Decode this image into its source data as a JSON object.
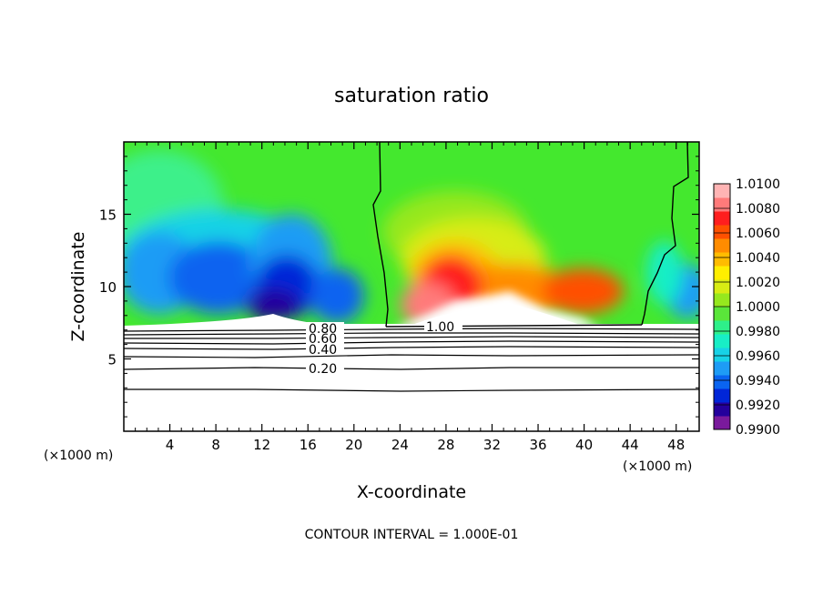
{
  "chart_data": {
    "type": "heatmap",
    "title": "saturation ratio",
    "xlabel": "X-coordinate",
    "ylabel": "Z-coordinate",
    "x_unit": "(×1000 m)",
    "x_unit_right": "(×1000 m)",
    "footer": "CONTOUR INTERVAL = 1.000E-01",
    "xlim": [
      0,
      50
    ],
    "ylim": [
      0,
      20
    ],
    "x_ticks": [
      4,
      8,
      12,
      16,
      20,
      24,
      28,
      32,
      36,
      40,
      44,
      48
    ],
    "y_ticks": [
      5,
      10,
      15
    ],
    "colorbar": {
      "min": 0.99,
      "max": 1.01,
      "labels": [
        "1.0100",
        "1.0080",
        "1.0060",
        "1.0040",
        "1.0020",
        "1.0000",
        "0.9980",
        "0.9960",
        "0.9940",
        "0.9920",
        "0.9900"
      ],
      "colors": [
        "#7a1a9c",
        "#24009c",
        "#0026d8",
        "#0a64f0",
        "#1e9cf5",
        "#17d2e6",
        "#18eec6",
        "#2ef08a",
        "#5ae63a",
        "#96e81e",
        "#d8ec14",
        "#ffee00",
        "#ffbc00",
        "#ff8c00",
        "#ff5000",
        "#ff1e1e",
        "#ff7a7a",
        "#ffb4b4"
      ]
    },
    "contour_labels": [
      "0.20",
      "0.40",
      "0.60",
      "0.80",
      "1.00"
    ],
    "contour_levels": [
      0.1,
      0.2,
      0.3,
      0.4,
      0.5,
      0.6,
      0.7,
      0.8,
      0.9,
      1.0
    ]
  }
}
